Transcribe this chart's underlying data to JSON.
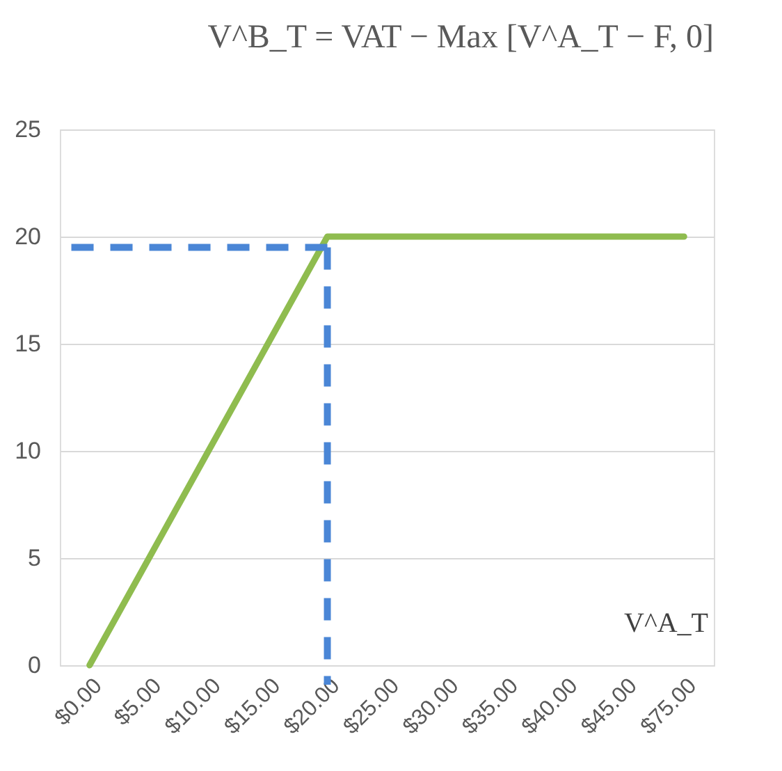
{
  "chart_data": {
    "type": "line",
    "title": "V^B_T = VAT − Max [V^A_T − F, 0]",
    "xlabel": "V^A_T",
    "categories": [
      "$0.00",
      "$5.00",
      "$10.00",
      "$15.00",
      "$20.00",
      "$25.00",
      "$30.00",
      "$35.00",
      "$40.00",
      "$45.00",
      "$75.00"
    ],
    "series": [
      {
        "color": "#8fbc4f",
        "values": [
          0,
          5,
          10,
          15,
          20,
          20,
          20,
          20,
          20,
          20,
          20
        ]
      }
    ],
    "ylim": [
      0,
      25
    ],
    "yticks": [
      0,
      5,
      10,
      15,
      20,
      25
    ],
    "grid": "y",
    "line_style": "solid",
    "ref_lines": [
      {
        "axis": "y",
        "value": 19.5,
        "color": "#4a86d6",
        "line_style": "dashed"
      },
      {
        "axis": "x",
        "value": "$20.00",
        "color": "#4a86d6",
        "line_style": "dashed"
      }
    ]
  }
}
